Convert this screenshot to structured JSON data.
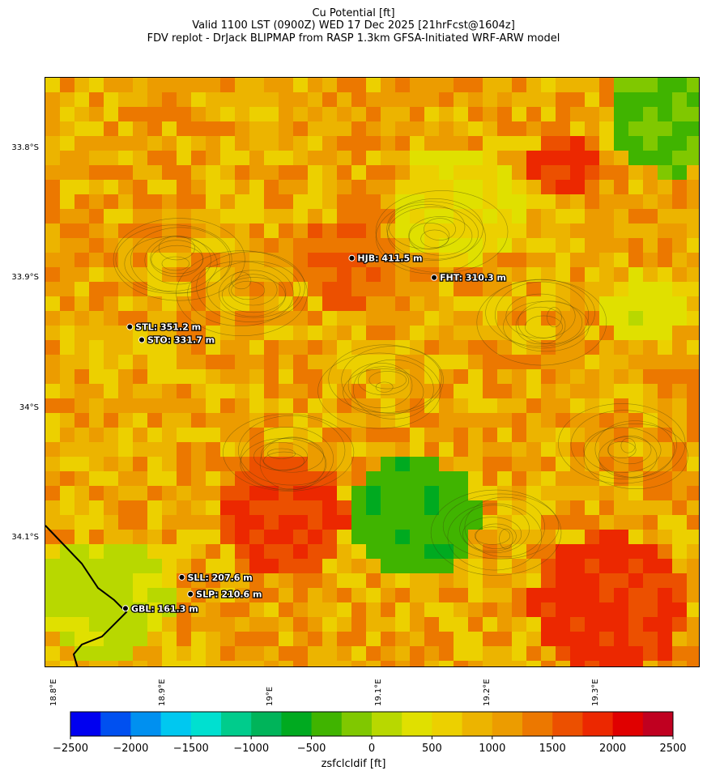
{
  "header": {
    "line1": "Cu Potential [ft]",
    "line2": "Valid 1100 LST (0900Z) WED 17 Dec 2025 [21hrFcst@1604z]",
    "line3": "FDV replot - DrJack BLIPMAP from RASP 1.3km GFSA-Initiated WRF-ARW model"
  },
  "chart_data": {
    "type": "heatmap",
    "title": "Cu Potential [ft]",
    "variable": "zsfclcldif",
    "colorbar_label": "zsfclcldif [ft]",
    "colorbar_ticks": [
      "−2500",
      "−2000",
      "−1500",
      "−1000",
      "−500",
      "0",
      "500",
      "1000",
      "1500",
      "2000",
      "2500"
    ],
    "colorbar_range": [
      -2500,
      2500
    ],
    "colorbar_colors": [
      "#0000f0",
      "#0050f0",
      "#0090f0",
      "#00c8f0",
      "#00e0d0",
      "#00cc8c",
      "#00b45a",
      "#00aa20",
      "#40b400",
      "#80c800",
      "#b8d800",
      "#e0e000",
      "#ecd000",
      "#ecb400",
      "#ec9c00",
      "#ec7800",
      "#ec5000",
      "#ec2800",
      "#e00000",
      "#c00020"
    ],
    "y_ticks": [
      "33.8°S",
      "33.9°S",
      "34°S",
      "34.1°S"
    ],
    "x_ticks": [
      "18.8°E",
      "18.9°E",
      "19°E",
      "19.1°E",
      "19.2°E",
      "19.3°E"
    ],
    "xlim": [
      18.8,
      19.405
    ],
    "ylim": [
      -34.2,
      -33.745
    ],
    "sites": [
      {
        "label": "HJB: 411.5 m",
        "lon": 19.083,
        "lat": -33.884
      },
      {
        "label": "FHT: 310.3 m",
        "lon": 19.159,
        "lat": -33.899
      },
      {
        "label": "STL: 351.2 m",
        "lon": 18.878,
        "lat": -33.937
      },
      {
        "label": "STO: 331.7 m",
        "lon": 18.889,
        "lat": -33.947
      },
      {
        "label": "SLL: 207.6 m",
        "lon": 18.926,
        "lat": -34.13
      },
      {
        "label": "SLP: 210.6 m",
        "lon": 18.934,
        "lat": -34.143
      },
      {
        "label": "GBL: 161.3 m",
        "lon": 18.874,
        "lat": -34.154
      }
    ]
  }
}
